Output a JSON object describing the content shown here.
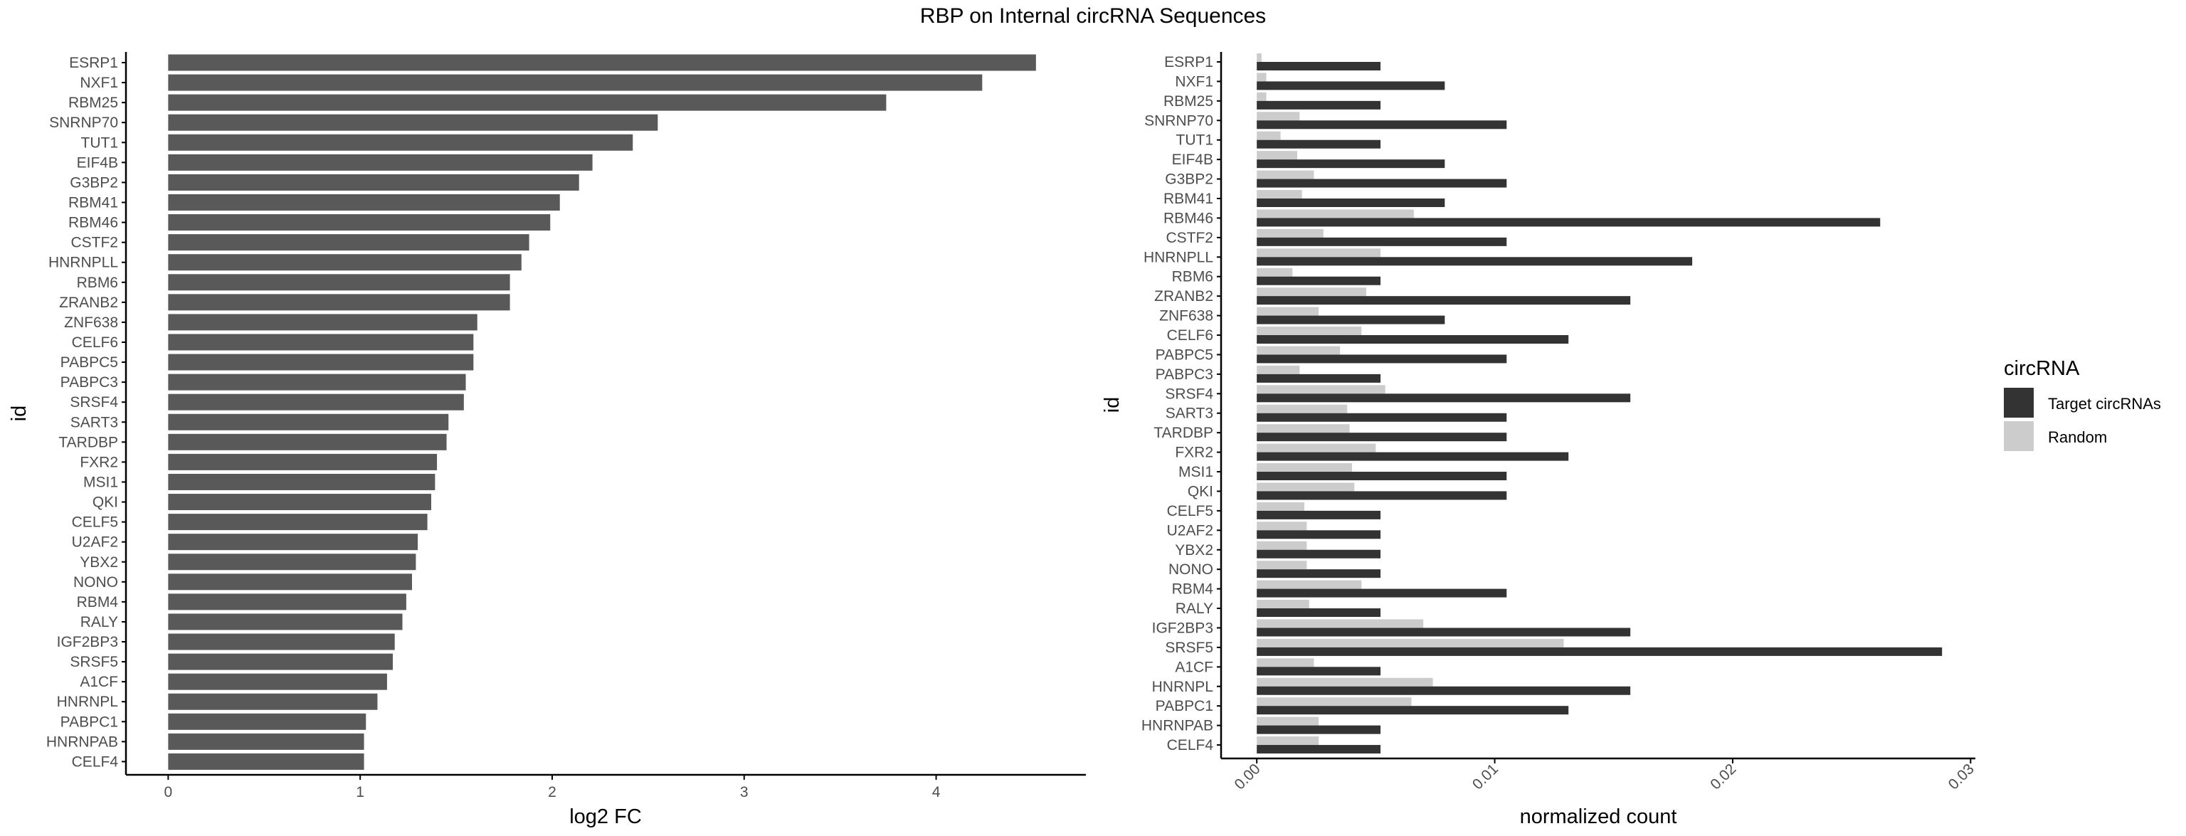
{
  "title": "RBP on Internal circRNA Sequences",
  "colors": {
    "bar": "#595959",
    "target": "#333333",
    "random": "#cccccc",
    "axis": "#000000",
    "tick_text": "#4d4d4d"
  },
  "chart_data": [
    {
      "type": "bar",
      "orientation": "horizontal",
      "xlabel": "log2 FC",
      "ylabel": "id",
      "xlim": [
        -0.22,
        4.78
      ],
      "xticks": [
        0,
        1,
        2,
        3,
        4
      ],
      "xtick_labels": [
        "0",
        "1",
        "2",
        "3",
        "4"
      ],
      "grid": false,
      "categories": [
        "ESRP1",
        "NXF1",
        "RBM25",
        "SNRNP70",
        "TUT1",
        "EIF4B",
        "G3BP2",
        "RBM41",
        "RBM46",
        "CSTF2",
        "HNRNPLL",
        "RBM6",
        "ZRANB2",
        "ZNF638",
        "CELF6",
        "PABPC5",
        "PABPC3",
        "SRSF4",
        "SART3",
        "TARDBP",
        "FXR2",
        "MSI1",
        "QKI",
        "CELF5",
        "U2AF2",
        "YBX2",
        "NONO",
        "RBM4",
        "RALY",
        "IGF2BP3",
        "SRSF5",
        "A1CF",
        "HNRNPL",
        "PABPC1",
        "HNRNPAB",
        "CELF4"
      ],
      "values": [
        4.52,
        4.24,
        3.74,
        2.55,
        2.42,
        2.21,
        2.14,
        2.04,
        1.99,
        1.88,
        1.84,
        1.78,
        1.78,
        1.61,
        1.59,
        1.59,
        1.55,
        1.54,
        1.46,
        1.45,
        1.4,
        1.39,
        1.37,
        1.35,
        1.3,
        1.29,
        1.27,
        1.24,
        1.22,
        1.18,
        1.17,
        1.14,
        1.09,
        1.03,
        1.02,
        1.02
      ]
    },
    {
      "type": "bar",
      "orientation": "horizontal",
      "grouped": true,
      "xlabel": "normalized count",
      "ylabel": "id",
      "xlim": [
        -0.0015,
        0.0302
      ],
      "xticks": [
        0,
        0.01,
        0.02,
        0.03
      ],
      "xtick_labels": [
        "0.00",
        "0.01",
        "0.02",
        "0.03"
      ],
      "grid": false,
      "legend": {
        "title": "circRNA",
        "position": "right"
      },
      "categories": [
        "ESRP1",
        "NXF1",
        "RBM25",
        "SNRNP70",
        "TUT1",
        "EIF4B",
        "G3BP2",
        "RBM41",
        "RBM46",
        "CSTF2",
        "HNRNPLL",
        "RBM6",
        "ZRANB2",
        "ZNF638",
        "CELF6",
        "PABPC5",
        "PABPC3",
        "SRSF4",
        "SART3",
        "TARDBP",
        "FXR2",
        "MSI1",
        "QKI",
        "CELF5",
        "U2AF2",
        "YBX2",
        "NONO",
        "RBM4",
        "RALY",
        "IGF2BP3",
        "SRSF5",
        "A1CF",
        "HNRNPL",
        "PABPC1",
        "HNRNPAB",
        "CELF4"
      ],
      "series": [
        {
          "name": "Target circRNAs",
          "color": "#333333",
          "values": [
            0.0052,
            0.0079,
            0.0052,
            0.0105,
            0.0052,
            0.0079,
            0.0105,
            0.0079,
            0.0262,
            0.0105,
            0.0183,
            0.0052,
            0.0157,
            0.0079,
            0.0131,
            0.0105,
            0.0052,
            0.0157,
            0.0105,
            0.0105,
            0.0131,
            0.0105,
            0.0105,
            0.0052,
            0.0052,
            0.0052,
            0.0052,
            0.0105,
            0.0052,
            0.0157,
            0.0288,
            0.0052,
            0.0157,
            0.0131,
            0.0052,
            0.0052
          ]
        },
        {
          "name": "Random",
          "color": "#cccccc",
          "values": [
            0.0002,
            0.0004,
            0.0004,
            0.0018,
            0.001,
            0.0017,
            0.0024,
            0.0019,
            0.0066,
            0.0028,
            0.0052,
            0.0015,
            0.0046,
            0.0026,
            0.0044,
            0.0035,
            0.0018,
            0.0054,
            0.0038,
            0.0039,
            0.005,
            0.004,
            0.0041,
            0.002,
            0.0021,
            0.0021,
            0.0021,
            0.0044,
            0.0022,
            0.007,
            0.0129,
            0.0024,
            0.0074,
            0.0065,
            0.0026,
            0.0026
          ]
        }
      ]
    }
  ]
}
